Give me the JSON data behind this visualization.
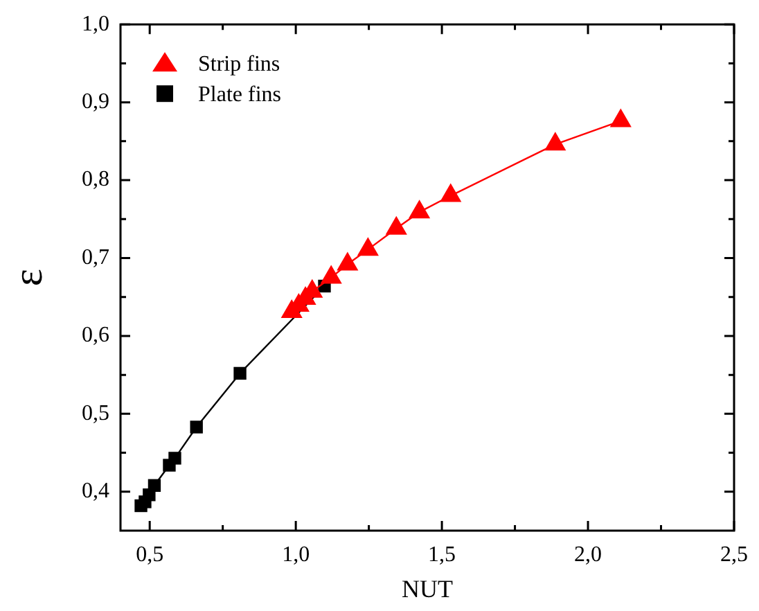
{
  "chart_data": {
    "type": "line",
    "xlabel": "NUT",
    "ylabel": "ε",
    "xlim": [
      0.4,
      2.5
    ],
    "ylim": [
      0.35,
      1.0
    ],
    "xticks": [
      {
        "value": 0.5,
        "label": "0,5"
      },
      {
        "value": 0.75,
        "label": null
      },
      {
        "value": 1.0,
        "label": "1,0"
      },
      {
        "value": 1.25,
        "label": null
      },
      {
        "value": 1.5,
        "label": "1,5"
      },
      {
        "value": 1.75,
        "label": null
      },
      {
        "value": 2.0,
        "label": "2,0"
      },
      {
        "value": 2.25,
        "label": null
      },
      {
        "value": 2.5,
        "label": "2,5"
      }
    ],
    "yticks": [
      {
        "value": 0.4,
        "label": "0,4"
      },
      {
        "value": 0.45,
        "label": null
      },
      {
        "value": 0.5,
        "label": "0,5"
      },
      {
        "value": 0.55,
        "label": null
      },
      {
        "value": 0.6,
        "label": "0,6"
      },
      {
        "value": 0.65,
        "label": null
      },
      {
        "value": 0.7,
        "label": "0,7"
      },
      {
        "value": 0.75,
        "label": null
      },
      {
        "value": 0.8,
        "label": "0,8"
      },
      {
        "value": 0.85,
        "label": null
      },
      {
        "value": 0.9,
        "label": "0,9"
      },
      {
        "value": 0.95,
        "label": null
      },
      {
        "value": 1.0,
        "label": "1,0"
      }
    ],
    "grid": false,
    "legend": "top left",
    "series": [
      {
        "name": "Strip fins",
        "color": "#ff0000",
        "marker": "triangle",
        "x": [
          0.986,
          1.01,
          1.033,
          1.056,
          1.121,
          1.177,
          1.247,
          1.344,
          1.423,
          1.53,
          1.888,
          2.112
        ],
        "values": [
          0.631,
          0.639,
          0.648,
          0.657,
          0.675,
          0.692,
          0.711,
          0.738,
          0.759,
          0.78,
          0.846,
          0.876
        ]
      },
      {
        "name": "Plate fins",
        "color": "#000000",
        "marker": "square",
        "x": [
          0.47,
          0.484,
          0.498,
          0.516,
          0.567,
          0.586,
          0.66,
          0.809,
          1.06,
          1.098
        ],
        "values": [
          0.382,
          0.387,
          0.396,
          0.408,
          0.434,
          0.443,
          0.483,
          0.552,
          null,
          0.664
        ]
      }
    ]
  }
}
